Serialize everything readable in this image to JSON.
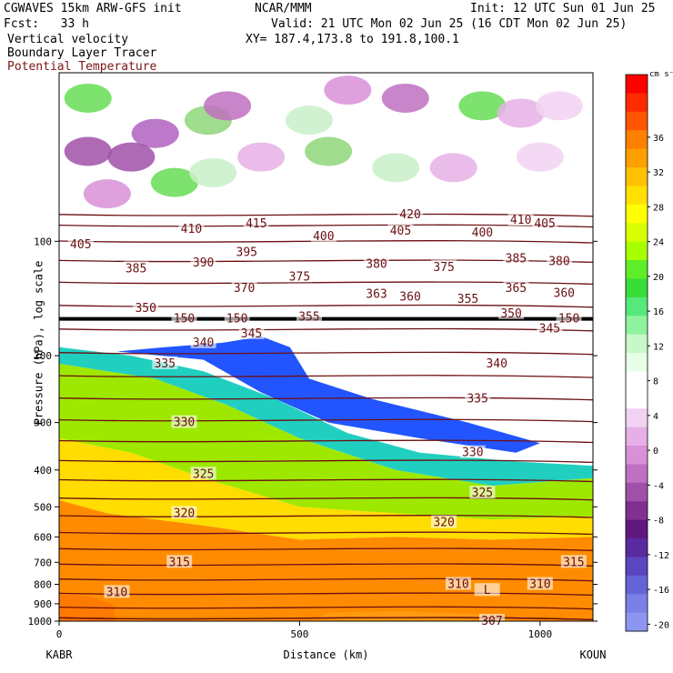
{
  "header": {
    "model": "CGWAVES 15km ARW-GFS init",
    "forecast": "Fcst:   33 h",
    "field1": "Vertical velocity",
    "field2": "Boundary Layer Tracer",
    "field3": "Potential Temperature",
    "center": "NCAR/MMM",
    "valid": "Valid: 21 UTC Mon 02 Jun 25 (16 CDT Mon 02 Jun 25)",
    "xy": "XY= 187.4,173.8 to 191.8,100.1",
    "init": "Init: 12 UTC Sun 01 Jun 25"
  },
  "colors": {
    "theta": "#6b0f12",
    "field3_text": "#7a1414"
  },
  "chart_data": {
    "type": "heatmap",
    "xlabel": "Distance (km)",
    "ylabel": "Pressure (hPa), log scale",
    "xlim": [
      0,
      1110
    ],
    "ylim": [
      1000,
      36
    ],
    "y_scale": "log",
    "x_ticks": [
      0,
      500,
      1000
    ],
    "y_ticks": [
      100,
      200,
      300,
      400,
      500,
      600,
      700,
      800,
      900,
      1000
    ],
    "endpoints": {
      "left": "KABR",
      "right": "KOUN"
    },
    "colorbar": {
      "unit": "cm s⁻¹",
      "labels": [
        "36",
        "32",
        "28",
        "24",
        "20",
        "16",
        "12",
        "8",
        "4",
        "0",
        "-4",
        "-8",
        "-12",
        "-16",
        "-20"
      ],
      "colors": [
        "#ff0000",
        "#ff2a00",
        "#ff5500",
        "#ff7f00",
        "#ff9f00",
        "#ffc000",
        "#ffe000",
        "#ffff00",
        "#d8ff00",
        "#a8ff00",
        "#5eee2a",
        "#38dd38",
        "#55e87a",
        "#8ff29e",
        "#c8f8c8",
        "#e6ffe6",
        "#ffffff",
        "#ffffff",
        "#f2d2f2",
        "#e6b0e6",
        "#d890d8",
        "#c070c0",
        "#a050a8",
        "#803090",
        "#601880",
        "#5a2aa0",
        "#5a46c0",
        "#6464d6",
        "#7a80e8",
        "#8c96f0"
      ]
    },
    "theta_labels": [
      {
        "t": "420",
        "x": 730,
        "p": 85
      },
      {
        "t": "415",
        "x": 410,
        "p": 90
      },
      {
        "t": "410",
        "x": 275,
        "p": 93
      },
      {
        "t": "410",
        "x": 960,
        "p": 88
      },
      {
        "t": "405",
        "x": 45,
        "p": 102
      },
      {
        "t": "405",
        "x": 710,
        "p": 94
      },
      {
        "t": "405",
        "x": 1010,
        "p": 90
      },
      {
        "t": "400",
        "x": 550,
        "p": 97
      },
      {
        "t": "400",
        "x": 880,
        "p": 95
      },
      {
        "t": "395",
        "x": 390,
        "p": 107
      },
      {
        "t": "390",
        "x": 300,
        "p": 114
      },
      {
        "t": "385",
        "x": 160,
        "p": 118
      },
      {
        "t": "385",
        "x": 950,
        "p": 111
      },
      {
        "t": "380",
        "x": 660,
        "p": 115
      },
      {
        "t": "380",
        "x": 1040,
        "p": 113
      },
      {
        "t": "375",
        "x": 500,
        "p": 124
      },
      {
        "t": "375",
        "x": 800,
        "p": 117
      },
      {
        "t": "370",
        "x": 385,
        "p": 133
      },
      {
        "t": "365",
        "x": 950,
        "p": 133
      },
      {
        "t": "363",
        "x": 660,
        "p": 138
      },
      {
        "t": "360",
        "x": 730,
        "p": 140
      },
      {
        "t": "360",
        "x": 1050,
        "p": 137
      },
      {
        "t": "355",
        "x": 520,
        "p": 158
      },
      {
        "t": "355",
        "x": 850,
        "p": 142
      },
      {
        "t": "350",
        "x": 180,
        "p": 150
      },
      {
        "t": "350",
        "x": 940,
        "p": 155
      },
      {
        "t": "345",
        "x": 400,
        "p": 175
      },
      {
        "t": "345",
        "x": 1020,
        "p": 170
      },
      {
        "t": "340",
        "x": 300,
        "p": 185
      },
      {
        "t": "340",
        "x": 910,
        "p": 210
      },
      {
        "t": "335",
        "x": 220,
        "p": 210
      },
      {
        "t": "335",
        "x": 870,
        "p": 260
      },
      {
        "t": "330",
        "x": 260,
        "p": 300
      },
      {
        "t": "330",
        "x": 860,
        "p": 360
      },
      {
        "t": "325",
        "x": 300,
        "p": 410
      },
      {
        "t": "325",
        "x": 880,
        "p": 460
      },
      {
        "t": "320",
        "x": 260,
        "p": 520
      },
      {
        "t": "320",
        "x": 800,
        "p": 550
      },
      {
        "t": "315",
        "x": 250,
        "p": 700
      },
      {
        "t": "315",
        "x": 1070,
        "p": 700
      },
      {
        "t": "310",
        "x": 120,
        "p": 840
      },
      {
        "t": "310",
        "x": 830,
        "p": 800
      },
      {
        "t": "310",
        "x": 1000,
        "p": 800
      },
      {
        "t": "307",
        "x": 900,
        "p": 1000
      },
      {
        "t": "L",
        "x": 890,
        "p": 830
      },
      {
        "t": "150",
        "x": 260,
        "p": 160
      },
      {
        "t": "150",
        "x": 370,
        "p": 160
      },
      {
        "t": "150",
        "x": 1060,
        "p": 160
      }
    ],
    "theta_levels": [
      420,
      415,
      410,
      405,
      400,
      395,
      390,
      385,
      380,
      375,
      370,
      365,
      360,
      355,
      350,
      345,
      340,
      335,
      330,
      325,
      320,
      315,
      310,
      307
    ]
  }
}
